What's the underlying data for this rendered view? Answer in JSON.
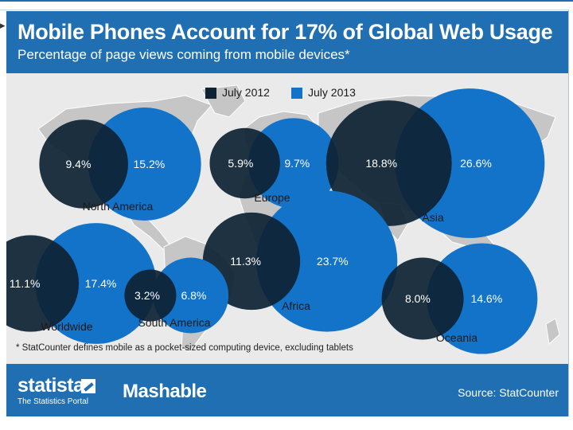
{
  "header": {
    "title": "Mobile Phones Account for 17% of Global Web Usage",
    "subtitle": "Percentage of page views coming from mobile devices*"
  },
  "footnote": "* StatCounter defines mobile as a pocket-sized computing device, excluding tablets",
  "footer": {
    "statista_name": "statista",
    "statista_tagline": "The Statistics Portal",
    "partner": "Mashable",
    "source": "Source: StatCounter"
  },
  "colors": {
    "header_bg": "#1f6fb2",
    "map_bg": "#eaeaea",
    "land": "#c6c6c6",
    "series_2012": "#0d2233",
    "series_2013": "#1273c9"
  },
  "chart_data": {
    "type": "bubble-map",
    "title": "Mobile Phones Account for 17% of Global Web Usage",
    "subtitle": "Percentage of page views coming from mobile devices*",
    "unit": "%",
    "series": [
      {
        "name": "July 2012",
        "color": "#0d2233"
      },
      {
        "name": "July 2013",
        "color": "#1273c9"
      }
    ],
    "regions": [
      {
        "name": "North America",
        "july_2012": 9.4,
        "july_2013": 15.2,
        "label_2012": "9.4%",
        "label_2013": "15.2%"
      },
      {
        "name": "Europe",
        "july_2012": 5.9,
        "july_2013": 9.7,
        "label_2012": "5.9%",
        "label_2013": "9.7%"
      },
      {
        "name": "Asia",
        "july_2012": 18.8,
        "july_2013": 26.6,
        "label_2012": "18.8%",
        "label_2013": "26.6%"
      },
      {
        "name": "Africa",
        "july_2012": 11.3,
        "july_2013": 23.7,
        "label_2012": "11.3%",
        "label_2013": "23.7%"
      },
      {
        "name": "Worldwide",
        "july_2012": 11.1,
        "july_2013": 17.4,
        "label_2012": "11.1%",
        "label_2013": "17.4%"
      },
      {
        "name": "South America",
        "july_2012": 3.2,
        "july_2013": 6.8,
        "label_2012": "3.2%",
        "label_2013": "6.8%"
      },
      {
        "name": "Oceania",
        "july_2012": 8.0,
        "july_2013": 14.6,
        "label_2012": "8.0%",
        "label_2013": "14.6%"
      }
    ]
  }
}
